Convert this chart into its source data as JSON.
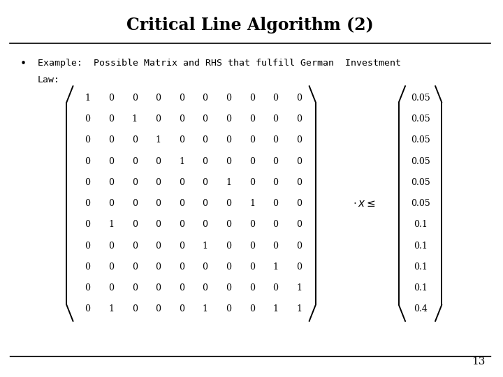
{
  "title": "Critical Line Algorithm (2)",
  "bullet_line1": "Example:  Possible Matrix and RHS that fulfill German  Investment",
  "bullet_line2": "Law:",
  "matrix": [
    [
      1,
      0,
      0,
      0,
      0,
      0,
      0,
      0,
      0,
      0
    ],
    [
      0,
      0,
      1,
      0,
      0,
      0,
      0,
      0,
      0,
      0
    ],
    [
      0,
      0,
      0,
      1,
      0,
      0,
      0,
      0,
      0,
      0
    ],
    [
      0,
      0,
      0,
      0,
      1,
      0,
      0,
      0,
      0,
      0
    ],
    [
      0,
      0,
      0,
      0,
      0,
      0,
      1,
      0,
      0,
      0
    ],
    [
      0,
      0,
      0,
      0,
      0,
      0,
      0,
      1,
      0,
      0
    ],
    [
      0,
      1,
      0,
      0,
      0,
      0,
      0,
      0,
      0,
      0
    ],
    [
      0,
      0,
      0,
      0,
      0,
      1,
      0,
      0,
      0,
      0
    ],
    [
      0,
      0,
      0,
      0,
      0,
      0,
      0,
      0,
      1,
      0
    ],
    [
      0,
      0,
      0,
      0,
      0,
      0,
      0,
      0,
      0,
      1
    ],
    [
      0,
      1,
      0,
      0,
      0,
      1,
      0,
      0,
      1,
      1
    ]
  ],
  "rhs": [
    0.05,
    0.05,
    0.05,
    0.05,
    0.05,
    0.05,
    0.1,
    0.1,
    0.1,
    0.1,
    0.4
  ],
  "page_number": "13",
  "bg_color": "#ffffff",
  "text_color": "#000000"
}
